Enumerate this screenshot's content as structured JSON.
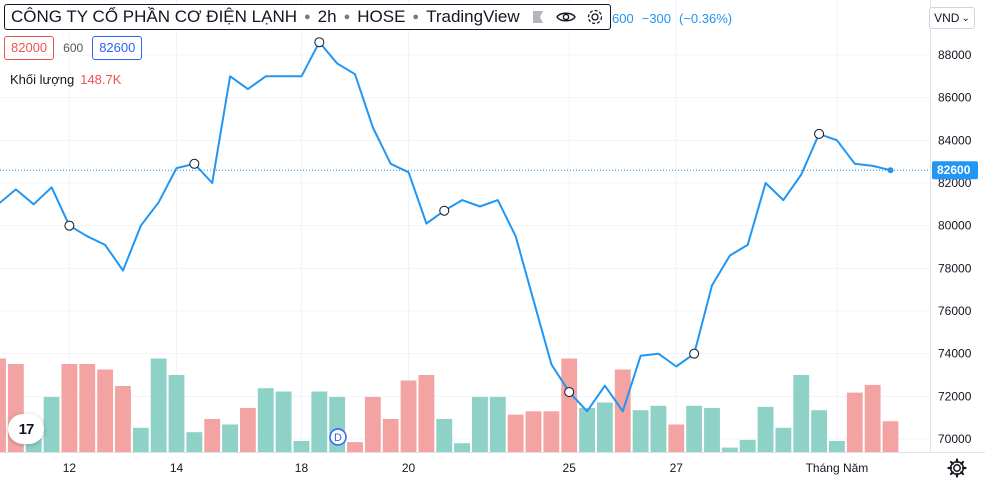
{
  "legend": {
    "name": "CÔNG TY CỔ PHẦN CƠ ĐIỆN LẠNH",
    "interval": "2h",
    "exchange": "HOSE",
    "brand": "TradingView",
    "change_partial": "600",
    "change_abs": "−300",
    "change_pct": "(−0.36%)"
  },
  "ohlc": {
    "low": "82000",
    "spread": "600",
    "last": "82600"
  },
  "volume": {
    "label": "Khối lượng",
    "value": "148.7K"
  },
  "currency": {
    "label": "VND",
    "caret": "⌄"
  },
  "logo_text": "17",
  "event_marker": "D",
  "colors": {
    "line": "#2196f3",
    "vol_up": "#8ed1c7",
    "vol_down": "#f4a3a3",
    "price_label_bg": "#2196f3",
    "grid": "#f0f3fa"
  },
  "chart_data": {
    "type": "line",
    "ylim": [
      69000,
      89500
    ],
    "y_ticks": [
      70000,
      72000,
      74000,
      76000,
      78000,
      80000,
      82000,
      84000,
      86000,
      88000
    ],
    "y_tick_labels": [
      "70000",
      "72000",
      "74000",
      "76000",
      "78000",
      "80000",
      "82000",
      "84000",
      "86000",
      "88000"
    ],
    "x_ticks": [
      {
        "label": "12",
        "index": 4
      },
      {
        "label": "14",
        "index": 10
      },
      {
        "label": "18",
        "index": 17
      },
      {
        "label": "20",
        "index": 23
      },
      {
        "label": "25",
        "index": 32
      },
      {
        "label": "27",
        "index": 38
      },
      {
        "label": "Tháng Năm",
        "index": 47
      }
    ],
    "last_price": 82600,
    "last_price_label": "82600",
    "price": [
      81000,
      81700,
      81000,
      81800,
      80000,
      79500,
      79100,
      77900,
      80000,
      81100,
      82700,
      82900,
      82000,
      87000,
      86400,
      87000,
      87000,
      87000,
      88600,
      87600,
      87100,
      84600,
      82900,
      82500,
      80100,
      80700,
      81200,
      80900,
      81200,
      79500,
      76500,
      73500,
      72200,
      71300,
      72500,
      71300,
      73900,
      74000,
      73400,
      74000,
      77200,
      78600,
      79100,
      82000,
      81200,
      82400,
      84300,
      84000,
      82900,
      82800,
      82600
    ],
    "session_markers": [
      4,
      11,
      18,
      25,
      32,
      39,
      46
    ],
    "volume_dir": [
      "d",
      "d",
      "u",
      "u",
      "d",
      "d",
      "d",
      "d",
      "u",
      "u",
      "u",
      "u",
      "d",
      "u",
      "d",
      "u",
      "u",
      "u",
      "u",
      "u",
      "d",
      "d",
      "d",
      "d",
      "d",
      "u",
      "u",
      "u",
      "u",
      "d",
      "d",
      "d",
      "d",
      "u",
      "u",
      "d",
      "u",
      "u",
      "d",
      "u",
      "u",
      "u",
      "u",
      "u",
      "u",
      "u",
      "u",
      "u",
      "d",
      "d",
      "d"
    ],
    "volume_rel": [
      0.85,
      0.8,
      0.12,
      0.5,
      0.8,
      0.8,
      0.75,
      0.6,
      0.22,
      0.85,
      0.7,
      0.18,
      0.3,
      0.25,
      0.4,
      0.58,
      0.55,
      0.1,
      0.55,
      0.5,
      0.09,
      0.5,
      0.3,
      0.65,
      0.7,
      0.3,
      0.08,
      0.5,
      0.5,
      0.34,
      0.37,
      0.37,
      0.85,
      0.4,
      0.45,
      0.75,
      0.38,
      0.42,
      0.25,
      0.42,
      0.4,
      0.04,
      0.11,
      0.41,
      0.22,
      0.7,
      0.38,
      0.1,
      0.54,
      0.61,
      0.28
    ]
  }
}
